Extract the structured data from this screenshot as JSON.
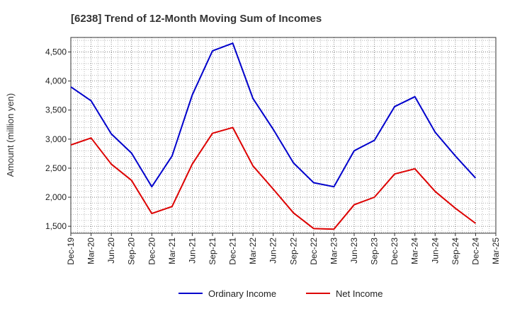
{
  "chart_data": {
    "type": "line",
    "title": "[6238]  Trend of 12-Month Moving Sum of Incomes",
    "xlabel": "",
    "ylabel": "Amount (million yen)",
    "ylim": [
      1380,
      4750
    ],
    "yticks": [
      1500,
      2000,
      2500,
      3000,
      3500,
      4000,
      4500
    ],
    "ytick_labels": [
      "1,500",
      "2,000",
      "2,500",
      "3,000",
      "3,500",
      "4,000",
      "4,500"
    ],
    "categories": [
      "Dec-19",
      "Mar-20",
      "Jun-20",
      "Sep-20",
      "Dec-20",
      "Mar-21",
      "Jun-21",
      "Sep-21",
      "Dec-21",
      "Mar-22",
      "Jun-22",
      "Sep-22",
      "Dec-22",
      "Mar-23",
      "Jun-23",
      "Sep-23",
      "Dec-23",
      "Mar-24",
      "Jun-24",
      "Sep-24",
      "Dec-24",
      "Mar-25"
    ],
    "grid": true,
    "legend_position": "bottom",
    "series": [
      {
        "name": "Ordinary Income",
        "color": "#0000cc",
        "values": [
          3900,
          3660,
          3090,
          2760,
          2180,
          2710,
          3760,
          4520,
          4650,
          3700,
          3170,
          2590,
          2250,
          2180,
          2800,
          2980,
          3560,
          3730,
          3120,
          2710,
          2330,
          null
        ]
      },
      {
        "name": "Net Income",
        "color": "#dd0000",
        "values": [
          2900,
          3020,
          2570,
          2290,
          1720,
          1840,
          2570,
          3100,
          3200,
          2540,
          2140,
          1730,
          1460,
          1450,
          1870,
          2000,
          2400,
          2490,
          2100,
          1810,
          1550,
          null
        ]
      }
    ]
  }
}
